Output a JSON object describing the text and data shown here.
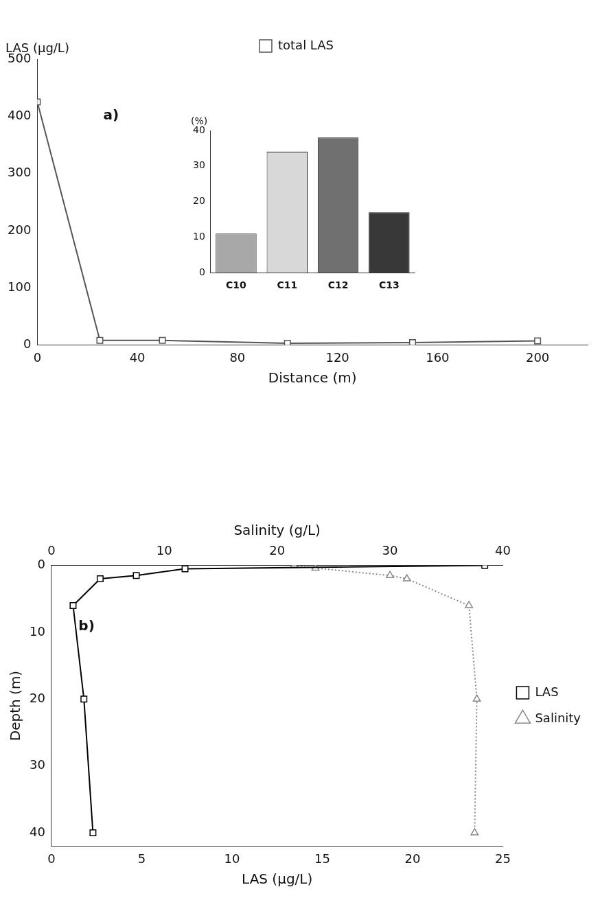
{
  "chart_data": [
    {
      "type": "line",
      "ylabel": "LAS (µg/L)",
      "xlabel": "Distance (m)",
      "annotations": [
        "a)"
      ],
      "x": [
        0,
        25,
        50,
        100,
        150,
        200
      ],
      "series": [
        {
          "name": "total LAS",
          "color": "#555555",
          "values": [
            425,
            8,
            8,
            3,
            4,
            7
          ]
        }
      ],
      "xlim": [
        0,
        220
      ],
      "xticks": [
        0,
        40,
        80,
        120,
        160,
        200
      ],
      "ylim": [
        0,
        500
      ],
      "yticks": [
        0,
        100,
        200,
        300,
        400,
        500
      ],
      "grid": false,
      "legend": "top",
      "marker": "square",
      "line_style": "solid"
    },
    {
      "type": "bar",
      "ylabel": "(%)",
      "categories": [
        "C10",
        "C11",
        "C12",
        "C13"
      ],
      "values": [
        11,
        34,
        38,
        17
      ],
      "colors": [
        "#a8a8a8",
        "#d8d8d8",
        "#707070",
        "#383838"
      ],
      "ylim": [
        0,
        40
      ],
      "yticks": [
        0,
        10,
        20,
        30,
        40
      ],
      "grid": false,
      "legend": false
    },
    {
      "type": "line",
      "ylabel": "Depth (m)",
      "xlabel": "LAS (µg/L)",
      "x2label": "Salinity (g/L)",
      "annotations": [
        "b)"
      ],
      "series": [
        {
          "name": "LAS",
          "color": "#000000",
          "x": [
            24,
            7.4,
            4.7,
            2.7,
            1.2,
            1.8,
            2.3
          ],
          "values": [
            0,
            0.5,
            1.5,
            2,
            6,
            20,
            40
          ],
          "marker": "square",
          "line_style": "solid"
        },
        {
          "name": "Salinity",
          "color": "#888888",
          "axis": "x2",
          "x": [
            21.5,
            23.4,
            30,
            31.5,
            37,
            37.7,
            37.5
          ],
          "values": [
            0,
            0.4,
            1.5,
            2,
            6,
            20,
            40
          ],
          "marker": "triangle",
          "line_style": "dotted"
        }
      ],
      "xlim": [
        0,
        25
      ],
      "xticks": [
        0,
        5,
        10,
        15,
        20,
        25
      ],
      "x2lim": [
        0,
        40
      ],
      "x2ticks": [
        0,
        10,
        20,
        30,
        40
      ],
      "ylim": [
        42,
        0
      ],
      "yticks": [
        0,
        10,
        20,
        30,
        40
      ],
      "grid": false,
      "legend": "right"
    }
  ]
}
